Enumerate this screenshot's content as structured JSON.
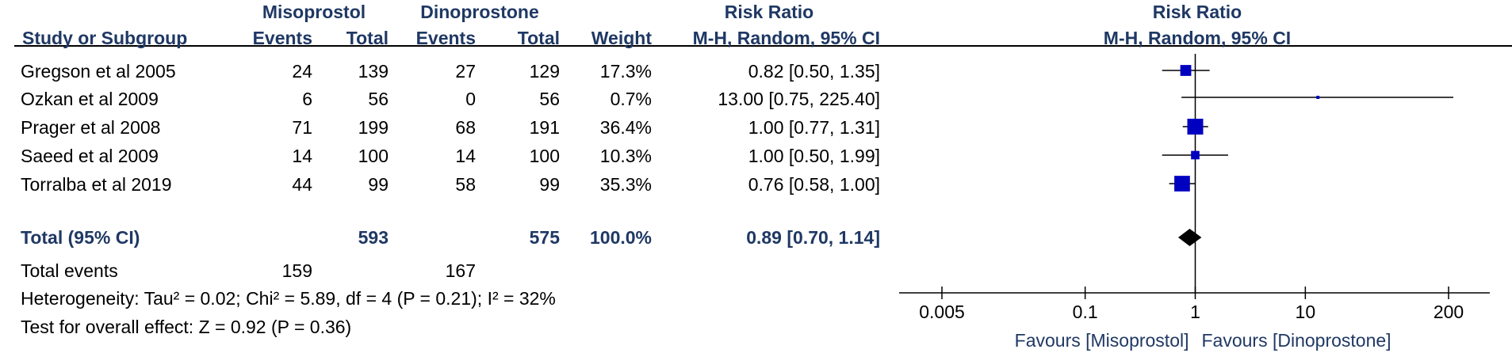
{
  "headers": {
    "group_misoprostol": "Misoprostol",
    "group_dinoprostone": "Dinoprostone",
    "study": "Study or Subgroup",
    "events": "Events",
    "total": "Total",
    "weight": "Weight",
    "risk_ratio": "Risk Ratio",
    "method": "M-H, Random, 95% CI",
    "plot_title": "Risk Ratio",
    "plot_method": "M-H, Random, 95% CI"
  },
  "studies": [
    {
      "name": "Gregson et al 2005",
      "miso_events": "24",
      "miso_total": "139",
      "dino_events": "27",
      "dino_total": "129",
      "weight": "17.3%",
      "rr_text": "0.82 [0.50, 1.35]"
    },
    {
      "name": "Ozkan et al 2009",
      "miso_events": "6",
      "miso_total": "56",
      "dino_events": "0",
      "dino_total": "56",
      "weight": "0.7%",
      "rr_text": "13.00 [0.75, 225.40]"
    },
    {
      "name": "Prager et al  2008",
      "miso_events": "71",
      "miso_total": "199",
      "dino_events": "68",
      "dino_total": "191",
      "weight": "36.4%",
      "rr_text": "1.00 [0.77, 1.31]"
    },
    {
      "name": "Saeed et al 2009",
      "miso_events": "14",
      "miso_total": "100",
      "dino_events": "14",
      "dino_total": "100",
      "weight": "10.3%",
      "rr_text": "1.00 [0.50, 1.99]"
    },
    {
      "name": "Torralba et al 2019",
      "miso_events": "44",
      "miso_total": "99",
      "dino_events": "58",
      "dino_total": "99",
      "weight": "35.3%",
      "rr_text": "0.76 [0.58, 1.00]"
    }
  ],
  "total": {
    "label": "Total (95% CI)",
    "miso_total": "593",
    "dino_total": "575",
    "weight": "100.0%",
    "rr_text": "0.89 [0.70, 1.14]"
  },
  "total_events": {
    "label": "Total events",
    "miso": "159",
    "dino": "167"
  },
  "heterogeneity": "Heterogeneity: Tau² = 0.02; Chi² = 5.89, df = 4 (P = 0.21); I² = 32%",
  "overall_effect": "Test for overall effect: Z = 0.92 (P = 0.36)",
  "colors": {
    "header": "#1f3864",
    "marker": "#0000c0",
    "diamond": "#000000"
  },
  "chart_data": {
    "type": "forest",
    "scale": "log",
    "xlim": [
      0.005,
      200
    ],
    "ticks": [
      {
        "value": 0.005,
        "label": "0.005"
      },
      {
        "value": 0.1,
        "label": "0.1"
      },
      {
        "value": 1,
        "label": "1"
      },
      {
        "value": 10,
        "label": "10"
      },
      {
        "value": 200,
        "label": "200"
      }
    ],
    "favours_left": "Favours [Misoprostol]",
    "favours_right": "Favours [Dinoprostone]",
    "estimates": [
      {
        "rr": 0.82,
        "lo": 0.5,
        "hi": 1.35,
        "weight": 17.3
      },
      {
        "rr": 13.0,
        "lo": 0.75,
        "hi": 225.4,
        "weight": 0.7
      },
      {
        "rr": 1.0,
        "lo": 0.77,
        "hi": 1.31,
        "weight": 36.4
      },
      {
        "rr": 1.0,
        "lo": 0.5,
        "hi": 1.99,
        "weight": 10.3
      },
      {
        "rr": 0.76,
        "lo": 0.58,
        "hi": 1.0,
        "weight": 35.3
      }
    ],
    "pooled": {
      "rr": 0.89,
      "lo": 0.7,
      "hi": 1.14
    }
  }
}
